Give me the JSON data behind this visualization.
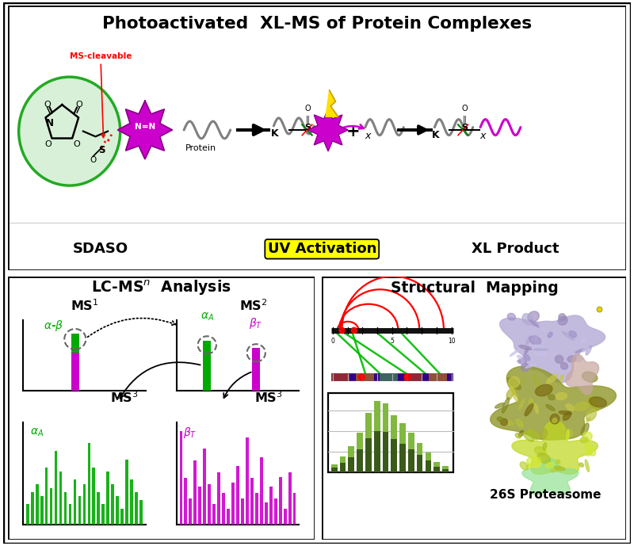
{
  "title": "Photoactivated  XL-MS of Protein Complexes",
  "background_color": "#ffffff",
  "sdaso_label": "SDASO",
  "uv_label": "UV Activation",
  "xl_label": "XL Product",
  "ms_cleavable": "MS-cleavable",
  "protein_label": "Protein",
  "proteasome_label": "26S Proteasome",
  "green_color": "#00aa00",
  "magenta_color": "#cc00cc",
  "dark_magenta": "#880088",
  "red_color": "#cc0000",
  "light_green_fill": "#d8f0d8",
  "green_border": "#22aa22",
  "purple_bar": "#220077",
  "dark_olive": "#3a5a1a",
  "light_olive": "#7ab840",
  "lavender": "#c0b8dd",
  "olive_green": "#8a9030",
  "yellow_green": "#a8c840",
  "light_green2": "#80d880",
  "pink_color": "#d0a8a8",
  "green_bars": [
    0.25,
    0.4,
    0.5,
    0.35,
    0.7,
    0.45,
    0.9,
    0.65,
    0.4,
    0.25,
    0.55,
    0.35,
    0.5,
    1.0,
    0.7,
    0.4,
    0.25,
    0.65,
    0.5,
    0.35,
    0.2,
    0.8,
    0.55,
    0.4,
    0.3
  ],
  "magenta_bars": [
    1.6,
    0.8,
    0.45,
    1.1,
    0.65,
    1.3,
    0.7,
    0.35,
    0.9,
    0.55,
    0.28,
    0.72,
    1.0,
    0.45,
    1.5,
    0.8,
    0.55,
    1.15,
    0.38,
    0.65,
    0.45,
    0.82,
    0.28,
    0.9,
    0.55
  ],
  "hist_vals": [
    0.2,
    0.4,
    0.65,
    1.0,
    1.5,
    1.8,
    1.75,
    1.45,
    1.25,
    1.0,
    0.75,
    0.5,
    0.25,
    0.15
  ]
}
